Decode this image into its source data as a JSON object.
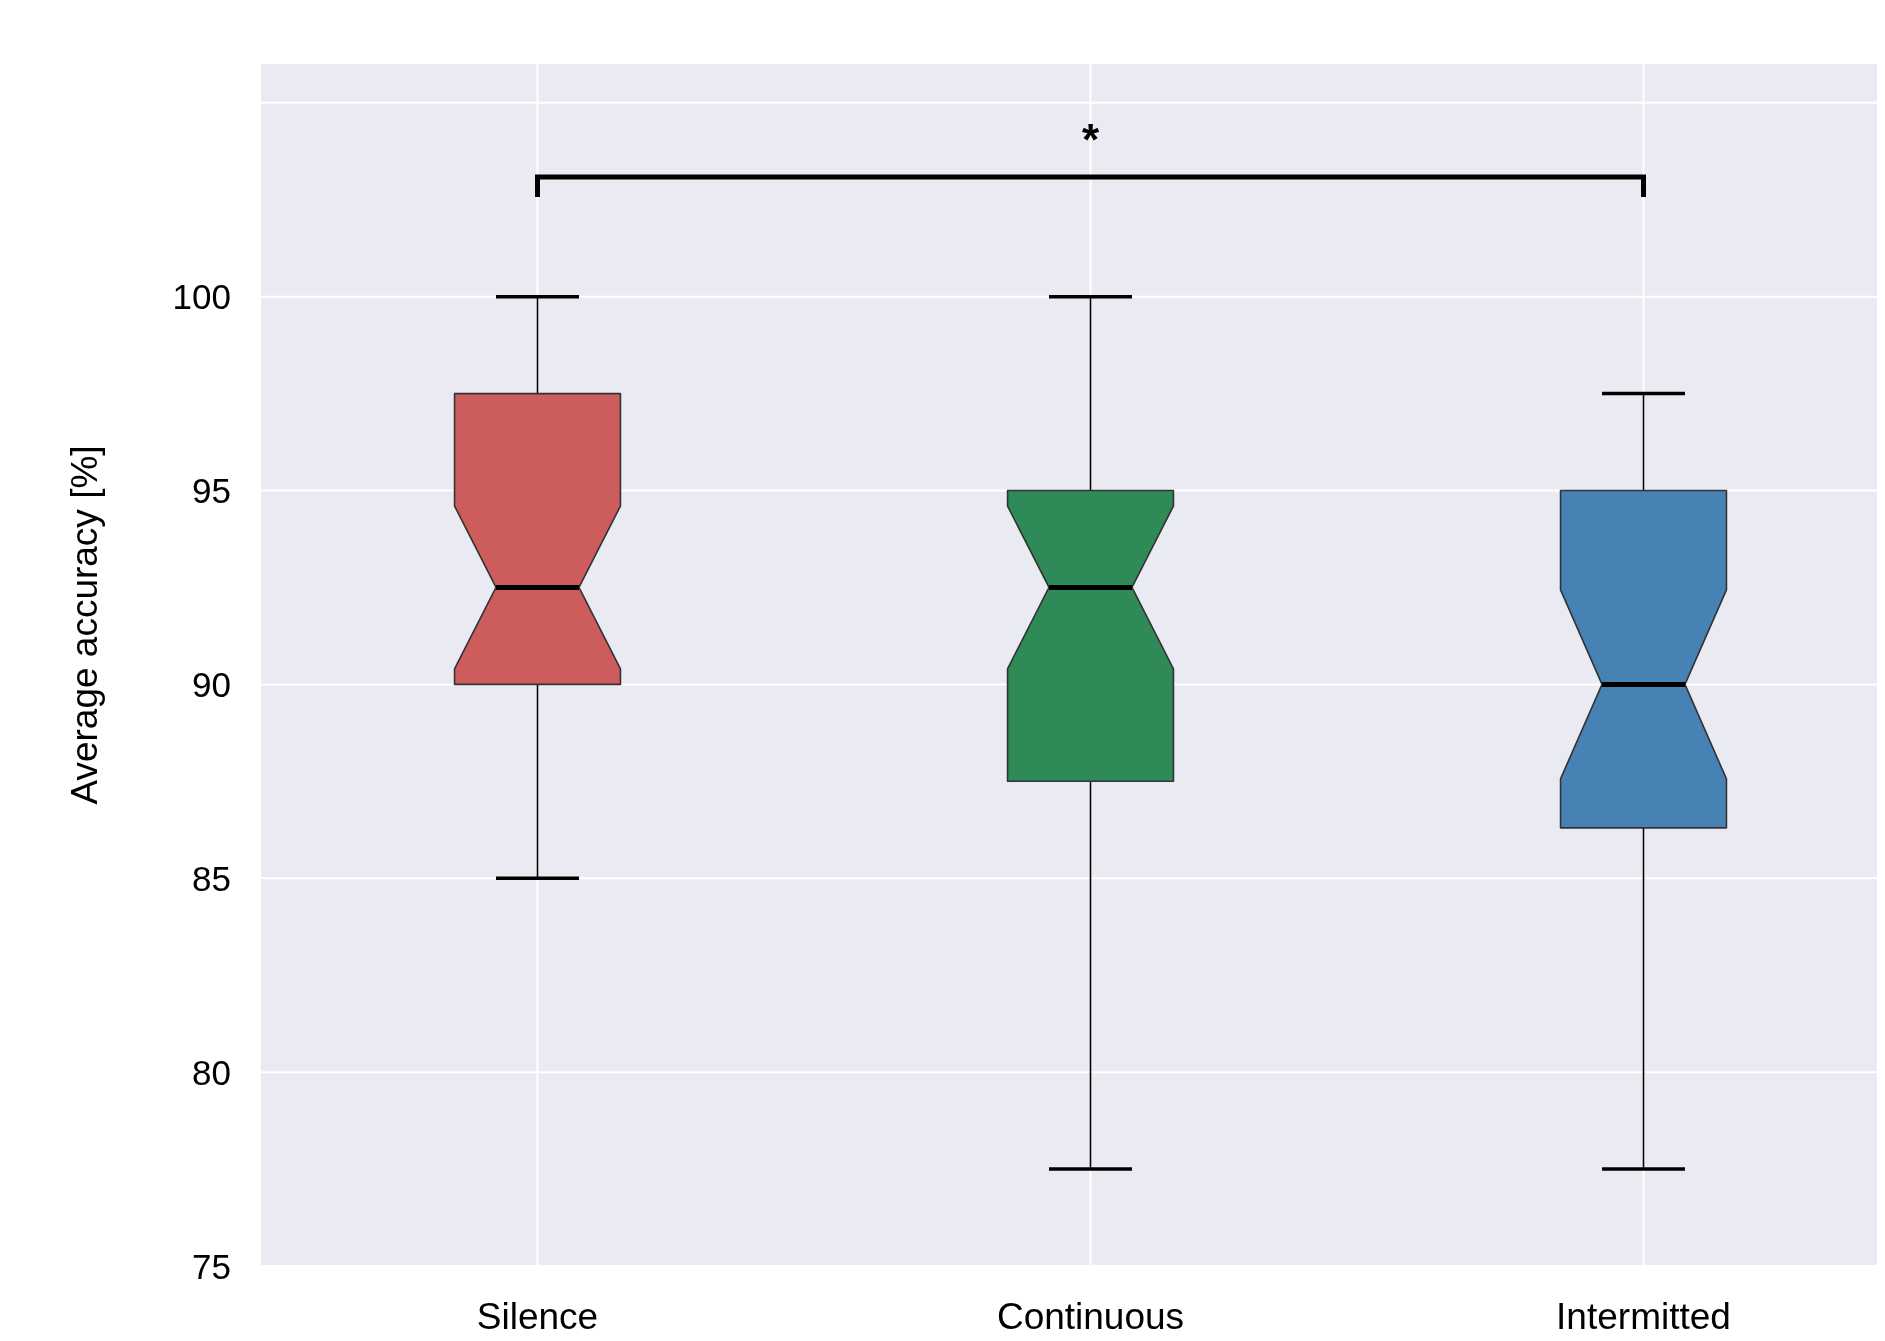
{
  "chart_data": {
    "type": "box",
    "ylabel": "Average accuracy [%]",
    "categories": [
      "Silence",
      "Continuous",
      "Intermitted"
    ],
    "colors": [
      "#cd5c5c",
      "#2e8b57",
      "#4682b4"
    ],
    "boxes": [
      {
        "low": 85,
        "q1": 90,
        "median": 92.5,
        "q3": 97.5,
        "high": 100
      },
      {
        "low": 77.5,
        "q1": 87.5,
        "median": 92.5,
        "q3": 95,
        "high": 100
      },
      {
        "low": 77.5,
        "q1": 86.3,
        "median": 90,
        "q3": 95,
        "high": 97.5
      }
    ],
    "ylim": [
      75,
      106
    ],
    "yticks": [
      75,
      80,
      85,
      90,
      95,
      100,
      {
        "value": 105,
        "label": null
      }
    ],
    "grid": true,
    "annotations": [
      "*"
    ]
  }
}
